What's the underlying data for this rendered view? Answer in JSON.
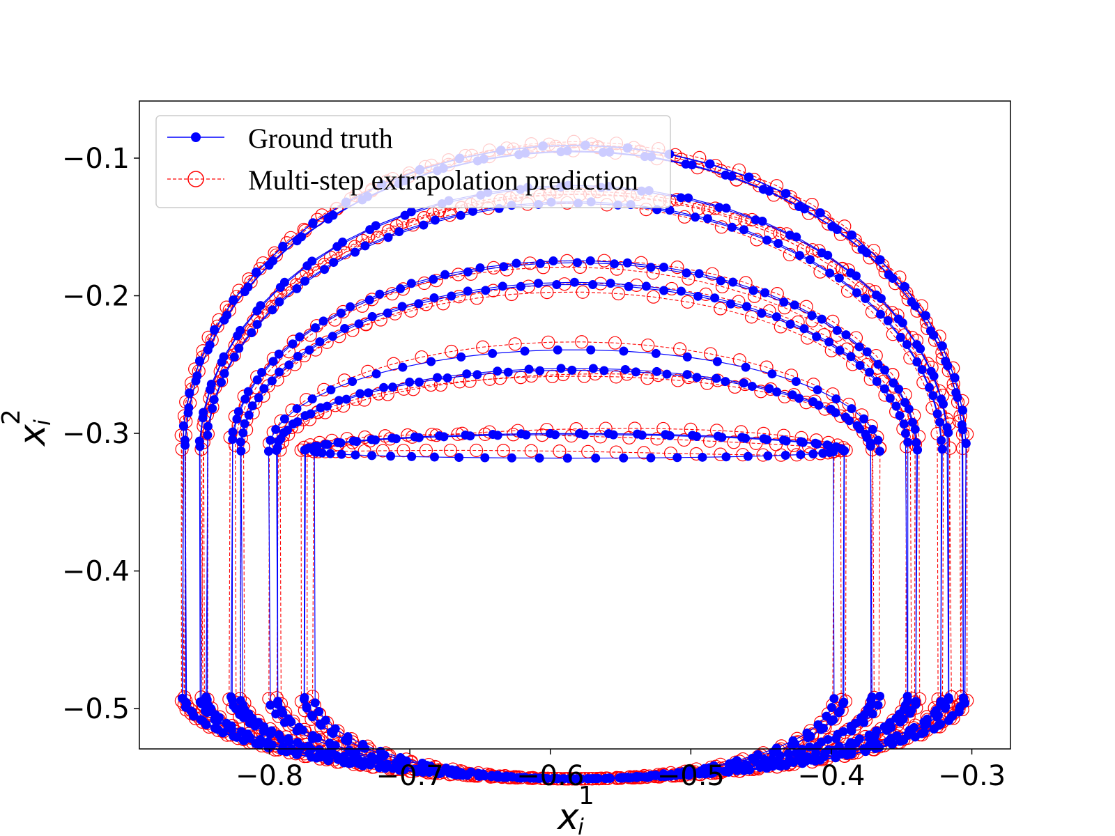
{
  "chart_data": {
    "type": "line",
    "xlabel": {
      "base": "x",
      "sub": "i",
      "sup": "1"
    },
    "ylabel": {
      "base": "x",
      "sub": "i",
      "sup": "2"
    },
    "xlim": [
      -0.8925,
      -0.2725
    ],
    "ylim": [
      -0.5293,
      -0.0585
    ],
    "xticks": [
      -0.8,
      -0.7,
      -0.6,
      -0.5,
      -0.4,
      -0.3
    ],
    "xtick_labels": [
      "−0.8",
      "−0.7",
      "−0.6",
      "−0.5",
      "−0.4",
      "−0.3"
    ],
    "yticks": [
      -0.1,
      -0.2,
      -0.3,
      -0.4,
      -0.5
    ],
    "ytick_labels": [
      "−0.1",
      "−0.2",
      "−0.3",
      "−0.4",
      "−0.5"
    ],
    "grid": false,
    "legend_position": "top-left",
    "trajectory": {
      "center_x": -0.583,
      "center_y_top": -0.313,
      "center_y_bottom": -0.491,
      "inner_x_radius": 0.185,
      "outer_x_radius": 0.28,
      "inner_y_top": -0.318,
      "outer_y_top": -0.088,
      "loops": 18,
      "points_per_loop": 58
    },
    "series": [
      {
        "name": "Ground truth",
        "color": "#0000ff",
        "line_style": "solid",
        "marker": "filled-circle"
      },
      {
        "name": "Multi-step extrapolation prediction",
        "color": "#ff0000",
        "line_style": "dashed",
        "marker": "open-circle"
      }
    ]
  }
}
